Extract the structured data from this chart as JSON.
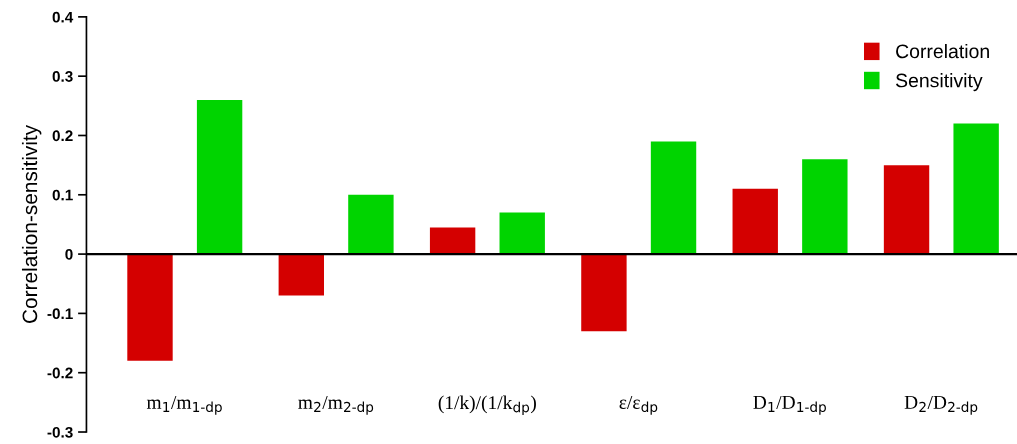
{
  "chart_data": {
    "type": "bar",
    "ylabel": "Correlation-sensitivity",
    "categories": [
      "m$_{1}$/m$_{1-dp}$",
      "m$_{2}$/m$_{2-dp}$",
      "(1/k)/(1/k$_{dp}$)",
      "ε/ε$_{dp}$",
      "D$_{1}$/D$_{1-dp}$",
      "D$_{2}$/D$_{2-dp}$"
    ],
    "series": [
      {
        "name": "Correlation",
        "color": "#d40000",
        "values": [
          -0.18,
          -0.07,
          0.045,
          -0.13,
          0.11,
          0.15
        ]
      },
      {
        "name": "Sensitivity",
        "color": "#00d400",
        "values": [
          0.26,
          0.1,
          0.07,
          0.19,
          0.16,
          0.22
        ]
      }
    ],
    "ylim": [
      -0.3,
      0.4
    ],
    "yticks": [
      -0.3,
      -0.2,
      -0.1,
      0,
      0.1,
      0.2,
      0.3,
      0.4
    ],
    "ref_lines": [
      {
        "axis": "y",
        "value": 0,
        "color": "#000000"
      }
    ],
    "grid": false,
    "legend": "top right"
  }
}
